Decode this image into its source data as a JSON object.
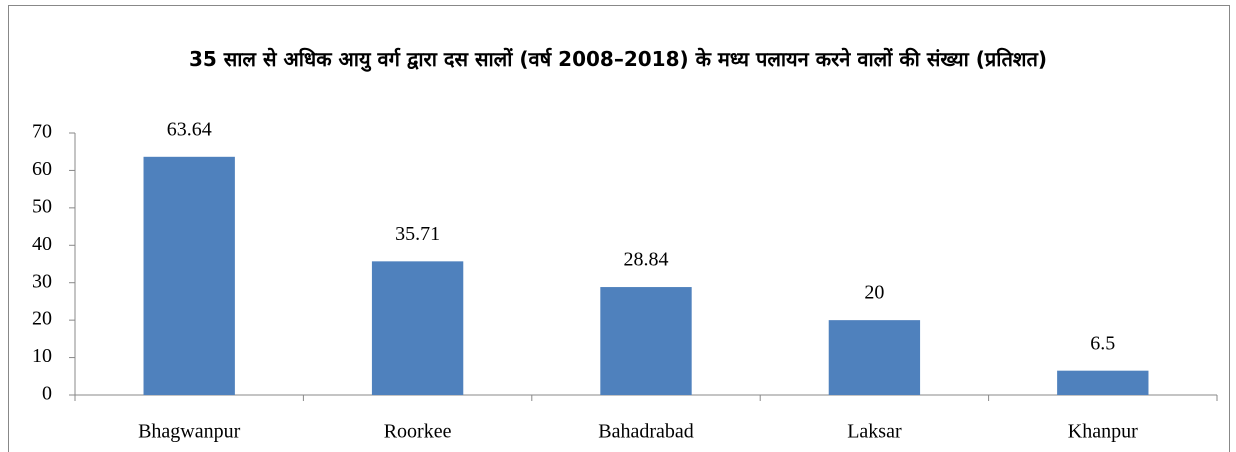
{
  "chart_data": {
    "type": "bar",
    "title": "35 साल से अधिक आयु वर्ग द्वारा दस सालों (वर्ष 2008–2018) के मध्य पलायन करने वालों की संख्या (प्रतिशत)",
    "categories": [
      "Bhagwanpur",
      "Roorkee",
      "Bahadrabad",
      "Laksar",
      "Khanpur"
    ],
    "values": [
      63.64,
      35.71,
      28.84,
      20,
      6.5
    ],
    "color": "#4f81bd",
    "ylim": [
      0,
      70
    ],
    "yticks": [
      0,
      10,
      20,
      30,
      40,
      50,
      60,
      70
    ],
    "grid": false
  }
}
